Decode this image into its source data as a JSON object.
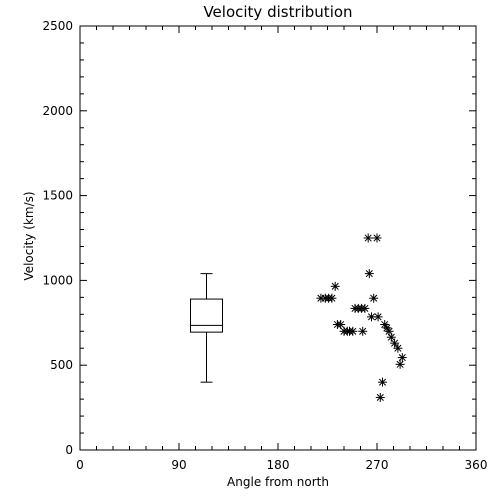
{
  "chart_data": {
    "type": "scatter",
    "title": "Velocity distribution",
    "xlabel": "Angle from north",
    "ylabel": "Velocity (km/s)",
    "xlim": [
      0,
      360
    ],
    "ylim": [
      0,
      2500
    ],
    "x_ticks": [
      0,
      90,
      180,
      270,
      360
    ],
    "y_ticks": [
      0,
      500,
      1000,
      1500,
      2000,
      2500
    ],
    "x_tick_labels": [
      "0",
      "90",
      "180",
      "270",
      "360"
    ],
    "y_tick_labels": [
      "0",
      "500",
      "1000",
      "1500",
      "2000",
      "2500"
    ],
    "grid": false,
    "legend": "none",
    "marker": "asterisk",
    "boxplot": {
      "x": 115,
      "min": 400,
      "q1": 695,
      "median": 735,
      "q3": 890,
      "max": 1040
    },
    "points": [
      {
        "x": 219,
        "y": 895
      },
      {
        "x": 223,
        "y": 895
      },
      {
        "x": 226,
        "y": 895
      },
      {
        "x": 229,
        "y": 895
      },
      {
        "x": 232,
        "y": 965
      },
      {
        "x": 234,
        "y": 740
      },
      {
        "x": 237,
        "y": 740
      },
      {
        "x": 240,
        "y": 700
      },
      {
        "x": 243,
        "y": 700
      },
      {
        "x": 245,
        "y": 700
      },
      {
        "x": 248,
        "y": 700
      },
      {
        "x": 250,
        "y": 835
      },
      {
        "x": 253,
        "y": 835
      },
      {
        "x": 256,
        "y": 835
      },
      {
        "x": 257,
        "y": 700
      },
      {
        "x": 259,
        "y": 835
      },
      {
        "x": 262,
        "y": 1250
      },
      {
        "x": 263,
        "y": 1040
      },
      {
        "x": 265,
        "y": 785
      },
      {
        "x": 267,
        "y": 895
      },
      {
        "x": 270,
        "y": 1250
      },
      {
        "x": 271,
        "y": 785
      },
      {
        "x": 273,
        "y": 310
      },
      {
        "x": 275,
        "y": 400
      },
      {
        "x": 277,
        "y": 740
      },
      {
        "x": 279,
        "y": 720
      },
      {
        "x": 281,
        "y": 700
      },
      {
        "x": 283,
        "y": 665
      },
      {
        "x": 286,
        "y": 630
      },
      {
        "x": 289,
        "y": 600
      },
      {
        "x": 291,
        "y": 505
      },
      {
        "x": 293,
        "y": 545
      }
    ]
  }
}
